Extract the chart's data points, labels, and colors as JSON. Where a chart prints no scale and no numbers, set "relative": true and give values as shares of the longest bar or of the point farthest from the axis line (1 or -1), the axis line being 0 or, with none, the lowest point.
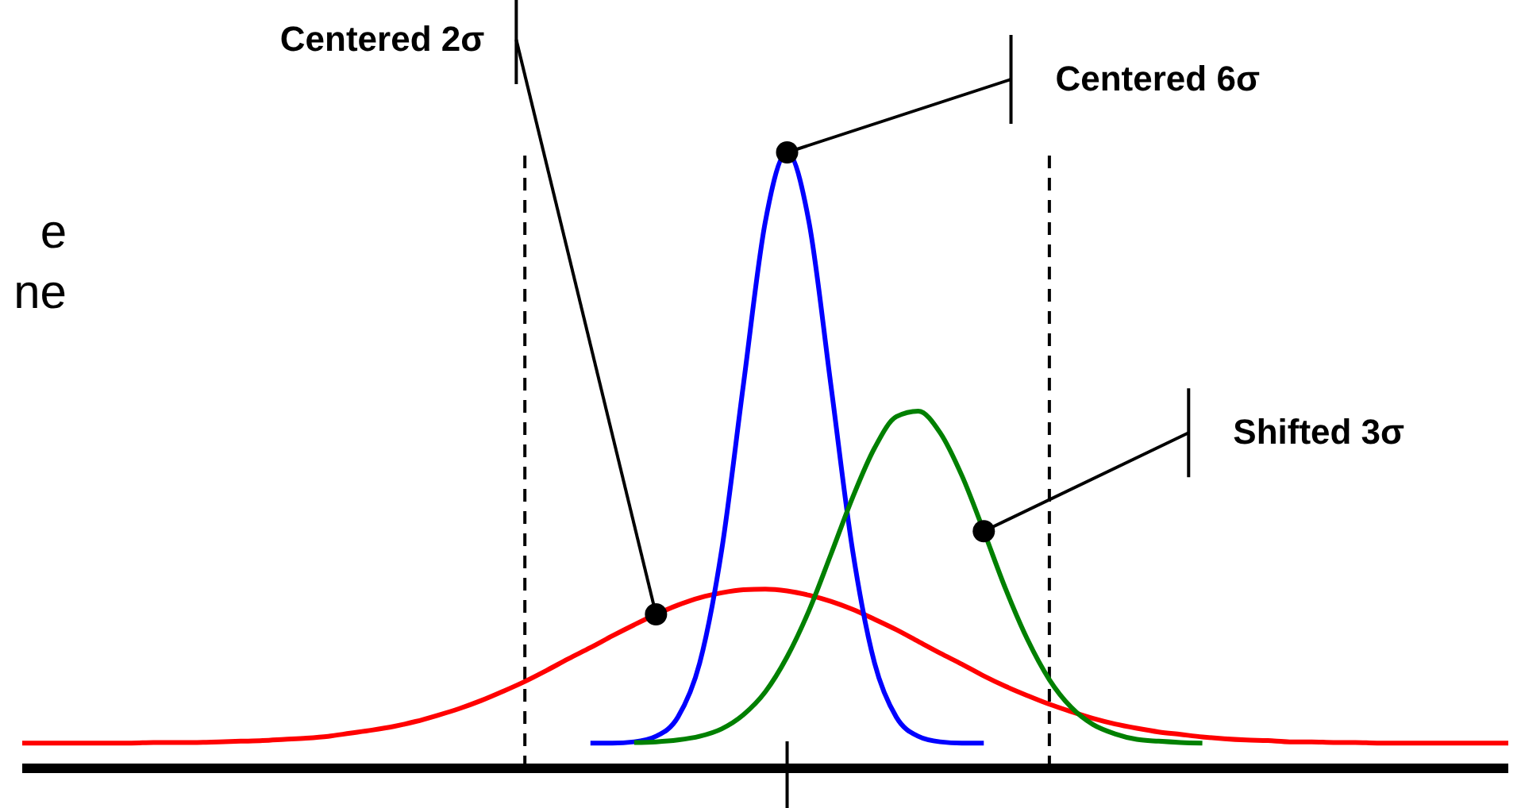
{
  "chart_data": {
    "type": "line",
    "relative": true,
    "categories": [
      null,
      null,
      null,
      null,
      null,
      null,
      null,
      null,
      null,
      null,
      null,
      null,
      null,
      null,
      null,
      null,
      null,
      null,
      null,
      null,
      null,
      null,
      null,
      null,
      null,
      null,
      null,
      null,
      null,
      null,
      null,
      null,
      null,
      null,
      null,
      null,
      null,
      null,
      null,
      null,
      null,
      null,
      null,
      null,
      null,
      null,
      null,
      null,
      null,
      null,
      null,
      null,
      null,
      null,
      null,
      null,
      null,
      null,
      null,
      null,
      null,
      null,
      null,
      null,
      null,
      null,
      null,
      null,
      null
    ],
    "series": [
      {
        "color": "#ff0000",
        "values": [
          0.041,
          0.041,
          0.041,
          0.041,
          0.041,
          0.041,
          0.042,
          0.042,
          0.042,
          0.043,
          0.044,
          0.045,
          0.047,
          0.049,
          0.052,
          0.057,
          0.062,
          0.068,
          0.076,
          0.086,
          0.097,
          0.11,
          0.125,
          0.141,
          0.159,
          0.178,
          0.196,
          0.215,
          0.233,
          0.25,
          0.265,
          0.277,
          0.285,
          0.29,
          0.291,
          0.288,
          0.281,
          0.271,
          0.258,
          0.242,
          0.225,
          0.206,
          0.187,
          0.169,
          0.15,
          0.133,
          0.118,
          0.104,
          0.092,
          0.081,
          0.072,
          0.065,
          0.059,
          0.055,
          0.051,
          0.048,
          0.046,
          0.045,
          0.043,
          0.043,
          0.042,
          0.042,
          0.041,
          0.041,
          0.041,
          0.041,
          0.041,
          0.041,
          0.041
        ]
      },
      {
        "color": "#0000ff",
        "values": [
          null,
          null,
          null,
          null,
          null,
          null,
          null,
          null,
          null,
          null,
          null,
          null,
          null,
          null,
          null,
          null,
          null,
          null,
          null,
          null,
          null,
          null,
          null,
          null,
          null,
          null,
          0.041,
          0.041,
          0.043,
          0.052,
          0.083,
          0.171,
          0.353,
          0.623,
          0.887,
          1,
          0.887,
          0.623,
          0.353,
          0.171,
          0.083,
          0.052,
          0.043,
          0.041,
          0.041,
          null,
          null,
          null,
          null,
          null,
          null,
          null,
          null,
          null,
          null,
          null,
          null,
          null,
          null,
          null,
          null,
          null,
          null,
          null,
          null,
          null,
          null,
          null,
          null
        ]
      },
      {
        "color": "#008000",
        "values": [
          null,
          null,
          null,
          null,
          null,
          null,
          null,
          null,
          null,
          null,
          null,
          null,
          null,
          null,
          null,
          null,
          null,
          null,
          null,
          null,
          null,
          null,
          null,
          null,
          null,
          null,
          null,
          null,
          0.042,
          0.043,
          0.046,
          0.052,
          0.064,
          0.087,
          0.124,
          0.181,
          0.256,
          0.347,
          0.44,
          0.52,
          0.571,
          0.58,
          0.545,
          0.475,
          0.385,
          0.291,
          0.209,
          0.144,
          0.099,
          0.071,
          0.056,
          0.047,
          0.044,
          0.042,
          0.041,
          null,
          null,
          null,
          null,
          null,
          null,
          null,
          null,
          null,
          null,
          null,
          null,
          null,
          null
        ]
      }
    ],
    "ref_lines": [
      {
        "axis": "x",
        "line_style": "dashed",
        "color": "#000000"
      },
      {
        "axis": "x",
        "line_style": "dashed",
        "color": "#000000"
      }
    ],
    "annotations": [
      "Centered 2σ",
      "Centered 6σ",
      "Shifted 3σ",
      "e",
      "ne"
    ]
  }
}
